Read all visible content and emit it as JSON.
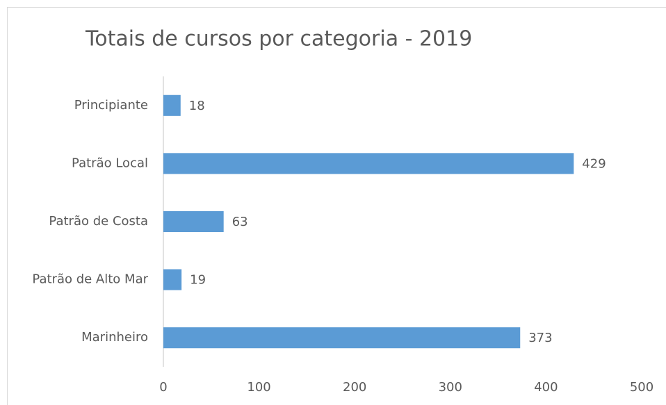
{
  "chart_data": {
    "type": "bar",
    "orientation": "horizontal",
    "title": "Totais de cursos por categoria - 2019",
    "categories": [
      "Principiante",
      "Patrão Local",
      "Patrão de Costa",
      "Patrão de Alto Mar",
      "Marinheiro"
    ],
    "values": [
      18,
      429,
      63,
      19,
      373
    ],
    "color": "#5b9bd5",
    "xlim": [
      0,
      500
    ],
    "xticks": [
      0,
      100,
      200,
      300,
      400,
      500
    ],
    "grid": false
  }
}
